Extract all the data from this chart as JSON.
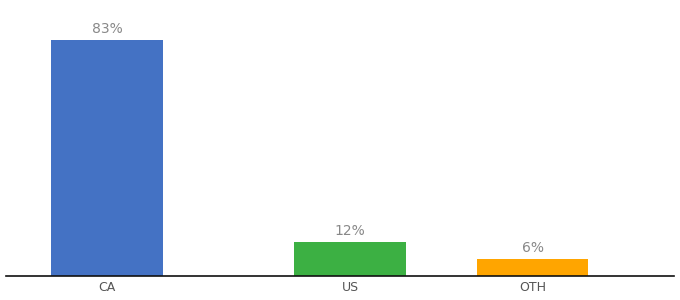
{
  "categories": [
    "CA",
    "US",
    "OTH"
  ],
  "values": [
    83,
    12,
    6
  ],
  "labels": [
    "83%",
    "12%",
    "6%"
  ],
  "bar_colors": [
    "#4472C4",
    "#3CB043",
    "#FFA500"
  ],
  "background_color": "#ffffff",
  "ylim": [
    0,
    95
  ],
  "bar_width": 0.55,
  "label_fontsize": 10,
  "tick_fontsize": 9,
  "label_color": "#888888",
  "x_positions": [
    0.5,
    1.7,
    2.6
  ],
  "xlim": [
    0.0,
    3.3
  ]
}
